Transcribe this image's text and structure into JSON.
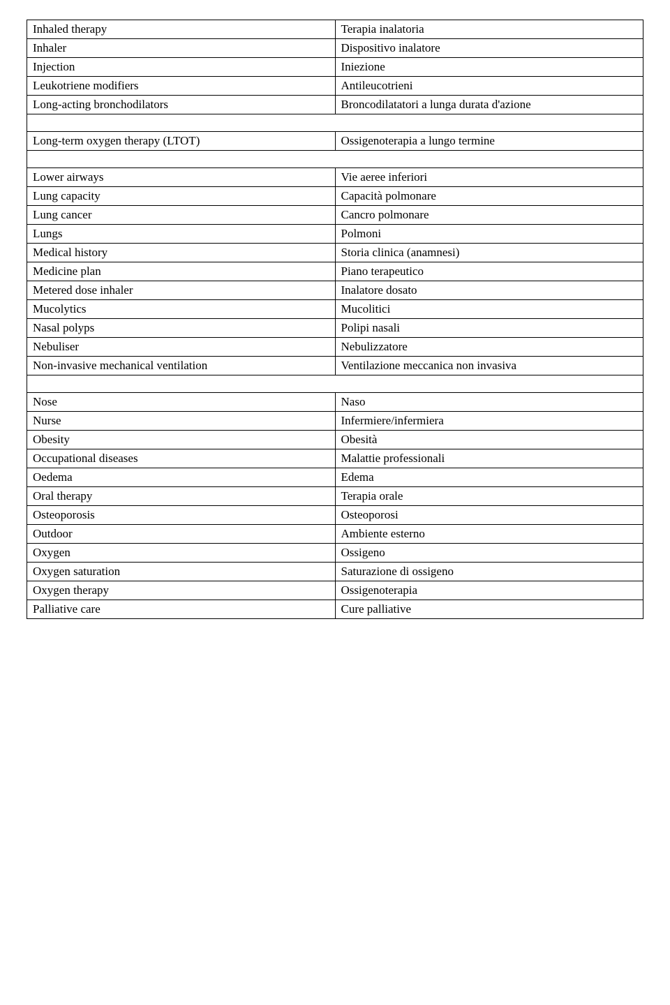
{
  "rows": [
    {
      "en": "Inhaled therapy",
      "it": "Terapia inalatoria",
      "tall": true
    },
    {
      "en": "Inhaler",
      "it": "Dispositivo inalatore"
    },
    {
      "en": "Injection",
      "it": "Iniezione"
    },
    {
      "en": "Leukotriene modifiers",
      "it": "Antileucotrieni"
    },
    {
      "en": "Long-acting bronchodilators",
      "it": "Broncodilatatori a lunga durata d'azione",
      "tall": true,
      "gapAfter": true
    },
    {
      "en": "Long-term oxygen therapy (LTOT)",
      "it": "Ossigenoterapia a lungo termine",
      "tall": true,
      "gapAfter": true
    },
    {
      "en": "Lower airways",
      "it": "Vie aeree inferiori"
    },
    {
      "en": "Lung capacity",
      "it": "Capacità polmonare"
    },
    {
      "en": "Lung cancer",
      "it": "Cancro polmonare"
    },
    {
      "en": "Lungs",
      "it": "Polmoni"
    },
    {
      "en": "Medical history",
      "it": "Storia clinica (anamnesi)"
    },
    {
      "en": "Medicine plan",
      "it": "Piano terapeutico"
    },
    {
      "en": "Metered dose inhaler",
      "it": "Inalatore dosato"
    },
    {
      "en": "Mucolytics",
      "it": "Mucolitici"
    },
    {
      "en": "Nasal polyps",
      "it": "Polipi nasali"
    },
    {
      "en": "Nebuliser",
      "it": "Nebulizzatore"
    },
    {
      "en": "Non-invasive mechanical ventilation",
      "it": "Ventilazione meccanica non invasiva",
      "tall": true,
      "gapAfter": true
    },
    {
      "en": "Nose",
      "it": "Naso"
    },
    {
      "en": "Nurse",
      "it": "Infermiere/infermiera"
    },
    {
      "en": "Obesity",
      "it": "Obesità"
    },
    {
      "en": "Occupational diseases",
      "it": "Malattie professionali"
    },
    {
      "en": "Oedema",
      "it": "Edema"
    },
    {
      "en": "Oral therapy",
      "it": "Terapia orale"
    },
    {
      "en": "Osteoporosis",
      "it": "Osteoporosi"
    },
    {
      "en": "Outdoor",
      "it": "Ambiente esterno"
    },
    {
      "en": "Oxygen",
      "it": "Ossigeno"
    },
    {
      "en": "Oxygen saturation",
      "it": "Saturazione di ossigeno",
      "tall": true
    },
    {
      "en": "Oxygen therapy",
      "it": "Ossigenoterapia"
    },
    {
      "en": "Palliative care",
      "it": "Cure palliative"
    }
  ]
}
